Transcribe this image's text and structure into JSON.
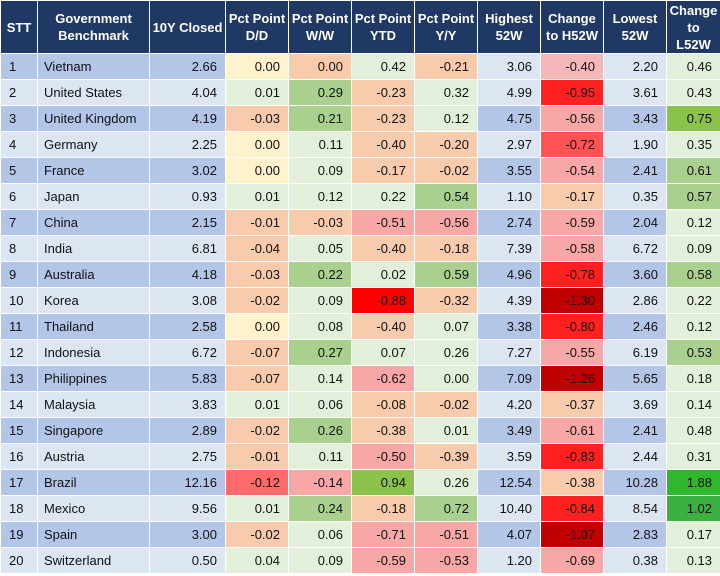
{
  "chart_data": {
    "type": "table",
    "columns": [
      "STT",
      "Government Benchmark",
      "10Y Closed",
      "Pct Point D/D",
      "Pct Point W/W",
      "Pct Point YTD",
      "Pct Point Y/Y",
      "Highest 52W",
      "Change to H52W",
      "Lowest 52W",
      "Change to L52W"
    ],
    "rows": [
      [
        "1",
        "Vietnam",
        "2.66",
        "0.00",
        "0.00",
        "0.42",
        "-0.21",
        "3.06",
        "-0.40",
        "2.20",
        "0.46"
      ],
      [
        "2",
        "United States",
        "4.04",
        "0.01",
        "0.29",
        "-0.23",
        "0.32",
        "4.99",
        "-0.95",
        "3.61",
        "0.43"
      ],
      [
        "3",
        "United Kingdom",
        "4.19",
        "-0.03",
        "0.21",
        "-0.23",
        "0.12",
        "4.75",
        "-0.56",
        "3.43",
        "0.75"
      ],
      [
        "4",
        "Germany",
        "2.25",
        "0.00",
        "0.11",
        "-0.40",
        "-0.20",
        "2.97",
        "-0.72",
        "1.90",
        "0.35"
      ],
      [
        "5",
        "France",
        "3.02",
        "0.00",
        "0.09",
        "-0.17",
        "-0.02",
        "3.55",
        "-0.54",
        "2.41",
        "0.61"
      ],
      [
        "6",
        "Japan",
        "0.93",
        "0.01",
        "0.12",
        "0.22",
        "0.54",
        "1.10",
        "-0.17",
        "0.35",
        "0.57"
      ],
      [
        "7",
        "China",
        "2.15",
        "-0.01",
        "-0.03",
        "-0.51",
        "-0.56",
        "2.74",
        "-0.59",
        "2.04",
        "0.12"
      ],
      [
        "8",
        "India",
        "6.81",
        "-0.04",
        "0.05",
        "-0.40",
        "-0.18",
        "7.39",
        "-0.58",
        "6.72",
        "0.09"
      ],
      [
        "9",
        "Australia",
        "4.18",
        "-0.03",
        "0.22",
        "0.02",
        "0.59",
        "4.96",
        "-0.78",
        "3.60",
        "0.58"
      ],
      [
        "10",
        "Korea",
        "3.08",
        "-0.02",
        "0.09",
        "-0.88",
        "-0.32",
        "4.39",
        "-1.30",
        "2.86",
        "0.22"
      ],
      [
        "11",
        "Thailand",
        "2.58",
        "0.00",
        "0.08",
        "-0.40",
        "0.07",
        "3.38",
        "-0.80",
        "2.46",
        "0.12"
      ],
      [
        "12",
        "Indonesia",
        "6.72",
        "-0.07",
        "0.27",
        "0.07",
        "0.26",
        "7.27",
        "-0.55",
        "6.19",
        "0.53"
      ],
      [
        "13",
        "Philippines",
        "5.83",
        "-0.07",
        "0.14",
        "-0.62",
        "0.00",
        "7.09",
        "-1.26",
        "5.65",
        "0.18"
      ],
      [
        "14",
        "Malaysia",
        "3.83",
        "0.01",
        "0.06",
        "-0.08",
        "-0.02",
        "4.20",
        "-0.37",
        "3.69",
        "0.14"
      ],
      [
        "15",
        "Singapore",
        "2.89",
        "-0.02",
        "0.26",
        "-0.38",
        "0.01",
        "3.49",
        "-0.61",
        "2.41",
        "0.48"
      ],
      [
        "16",
        "Austria",
        "2.75",
        "-0.01",
        "0.11",
        "-0.50",
        "-0.39",
        "3.59",
        "-0.83",
        "2.44",
        "0.31"
      ],
      [
        "17",
        "Brazil",
        "12.16",
        "-0.12",
        "-0.14",
        "0.94",
        "0.26",
        "12.54",
        "-0.38",
        "10.28",
        "1.88"
      ],
      [
        "18",
        "Mexico",
        "9.56",
        "0.01",
        "0.24",
        "-0.18",
        "0.72",
        "10.40",
        "-0.84",
        "8.54",
        "1.02"
      ],
      [
        "19",
        "Spain",
        "3.00",
        "-0.02",
        "0.06",
        "-0.71",
        "-0.51",
        "4.07",
        "-1.07",
        "2.83",
        "0.17"
      ],
      [
        "20",
        "Switzerland",
        "0.50",
        "0.04",
        "0.09",
        "-0.59",
        "-0.53",
        "1.20",
        "-0.69",
        "0.38",
        "0.13"
      ]
    ],
    "header_color": "#1f3864",
    "row_colors": {
      "odd": "#b4c6e7",
      "even": "#dce6f2"
    },
    "cell_colors": [
      [
        "#fff2cc",
        "#f8cbad",
        "#e2efda",
        "#f8cbad",
        "#dce6f2",
        "#f4b8b8",
        "#dce6f2",
        "#e2efda"
      ],
      [
        "#e2efda",
        "#a9d08e",
        "#f8cbad",
        "#e2efda",
        "#dce6f2",
        "#ff2020",
        "#dce6f2",
        "#e2efda"
      ],
      [
        "#f8cbad",
        "#a9d08e",
        "#f8cbad",
        "#e2efda",
        "#b4c6e7",
        "#f8a7a7",
        "#b4c6e7",
        "#8bc34a"
      ],
      [
        "#fff2cc",
        "#e2efda",
        "#f8cbad",
        "#f8cbad",
        "#dce6f2",
        "#ff5252",
        "#dce6f2",
        "#e2efda"
      ],
      [
        "#fff2cc",
        "#e2efda",
        "#f8cbad",
        "#f8cbad",
        "#b4c6e7",
        "#f8a7a7",
        "#b4c6e7",
        "#a9d08e"
      ],
      [
        "#e2efda",
        "#e2efda",
        "#e2efda",
        "#a9d08e",
        "#dce6f2",
        "#f8cbad",
        "#dce6f2",
        "#a9d08e"
      ],
      [
        "#f8cbad",
        "#f8cbad",
        "#f8a7a7",
        "#f8a7a7",
        "#b4c6e7",
        "#f8a7a7",
        "#b4c6e7",
        "#e2efda"
      ],
      [
        "#f8cbad",
        "#e2efda",
        "#f8cbad",
        "#f8cbad",
        "#dce6f2",
        "#f8a7a7",
        "#dce6f2",
        "#e2efda"
      ],
      [
        "#f8cbad",
        "#a9d08e",
        "#e2efda",
        "#a9d08e",
        "#b4c6e7",
        "#ff2020",
        "#b4c6e7",
        "#a9d08e"
      ],
      [
        "#f8cbad",
        "#e2efda",
        "#ff0000",
        "#f8cbad",
        "#dce6f2",
        "#c00000",
        "#dce6f2",
        "#e2efda"
      ],
      [
        "#fff2cc",
        "#e2efda",
        "#f8cbad",
        "#e2efda",
        "#b4c6e7",
        "#ff2020",
        "#b4c6e7",
        "#e2efda"
      ],
      [
        "#f8cbad",
        "#a9d08e",
        "#e2efda",
        "#e2efda",
        "#dce6f2",
        "#f8a7a7",
        "#dce6f2",
        "#a9d08e"
      ],
      [
        "#f8cbad",
        "#e2efda",
        "#f8a7a7",
        "#e2efda",
        "#b4c6e7",
        "#c00000",
        "#b4c6e7",
        "#e2efda"
      ],
      [
        "#e2efda",
        "#e2efda",
        "#f8cbad",
        "#f8cbad",
        "#dce6f2",
        "#f8cbad",
        "#dce6f2",
        "#e2efda"
      ],
      [
        "#f8cbad",
        "#a9d08e",
        "#f8cbad",
        "#e2efda",
        "#b4c6e7",
        "#f8a7a7",
        "#b4c6e7",
        "#e2efda"
      ],
      [
        "#f8cbad",
        "#e2efda",
        "#f8a7a7",
        "#f8cbad",
        "#dce6f2",
        "#ff2020",
        "#dce6f2",
        "#e2efda"
      ],
      [
        "#ff6b6b",
        "#f8a7a7",
        "#8bc34a",
        "#e2efda",
        "#b4c6e7",
        "#f8cbad",
        "#b4c6e7",
        "#2eb82e"
      ],
      [
        "#e2efda",
        "#a9d08e",
        "#f8cbad",
        "#a9d08e",
        "#dce6f2",
        "#ff2020",
        "#dce6f2",
        "#3cb043"
      ],
      [
        "#f8cbad",
        "#e2efda",
        "#f8a7a7",
        "#f8a7a7",
        "#b4c6e7",
        "#c00000",
        "#b4c6e7",
        "#e2efda"
      ],
      [
        "#e2efda",
        "#e2efda",
        "#f8a7a7",
        "#f8a7a7",
        "#dce6f2",
        "#f8a7a7",
        "#dce6f2",
        "#e2efda"
      ]
    ]
  }
}
